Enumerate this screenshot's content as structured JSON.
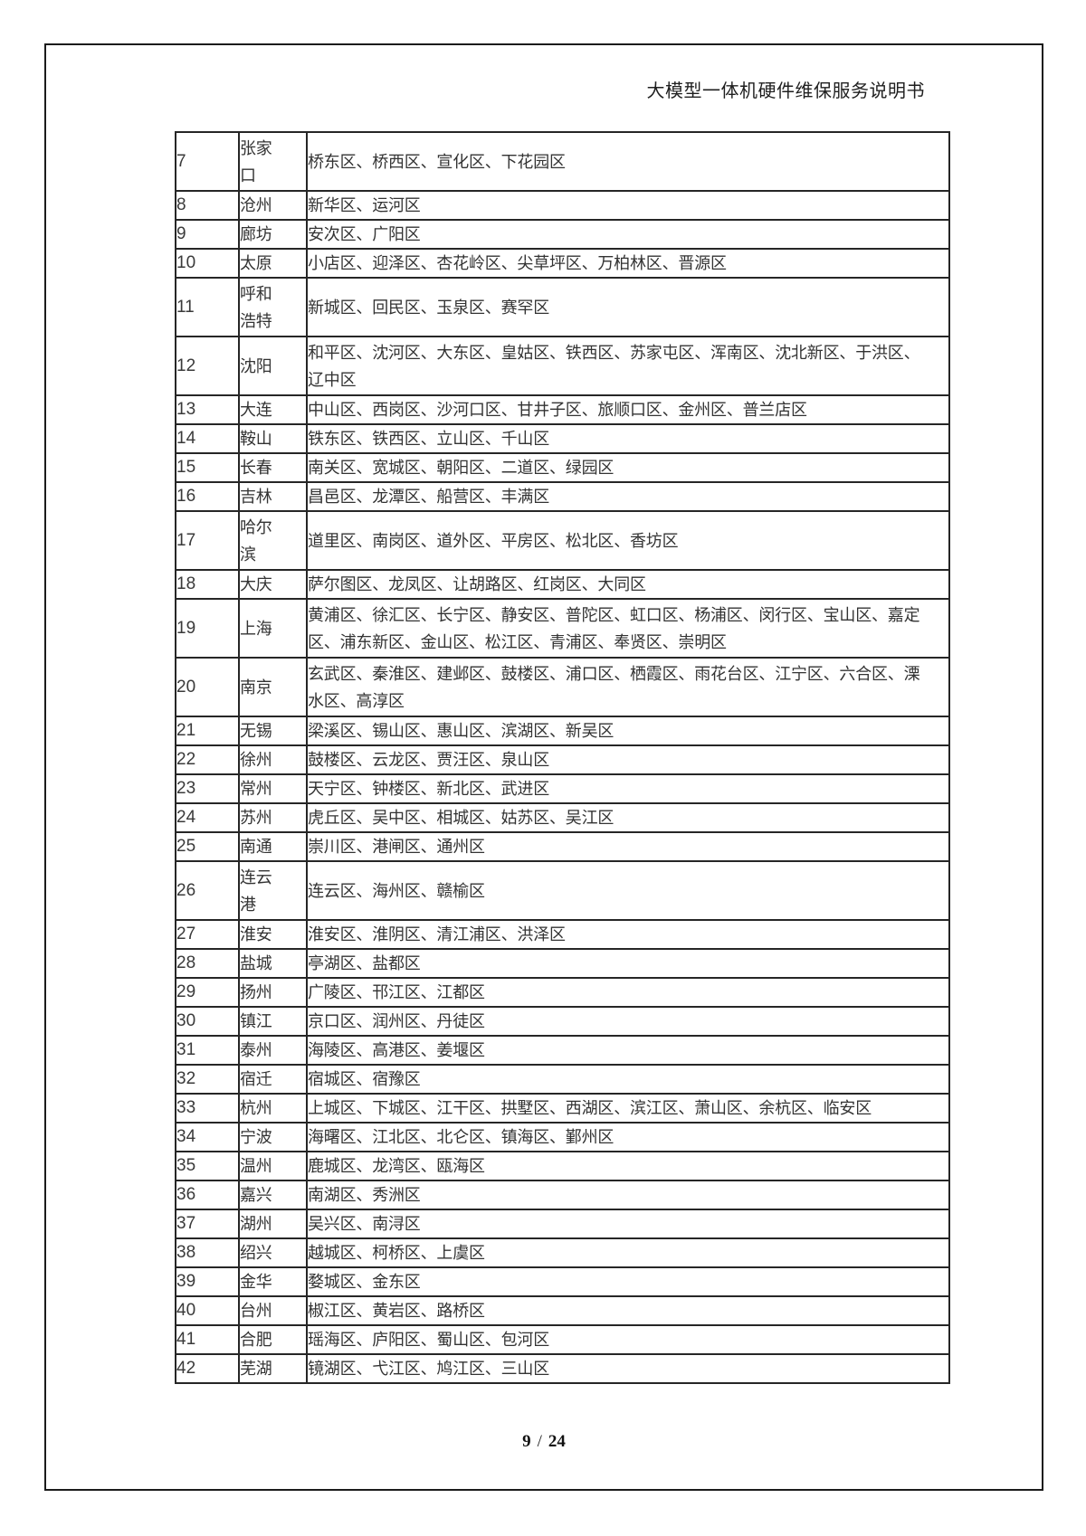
{
  "header": {
    "title": "大模型一体机硬件维保服务说明书"
  },
  "footer": {
    "current_page": "9",
    "separator": "/",
    "total_pages": "24"
  },
  "table": {
    "rows": [
      {
        "no": "7",
        "city_lines": [
          "张家",
          "口"
        ],
        "district_lines": [
          "桥东区、桥西区、宣化区、下花园区"
        ]
      },
      {
        "no": "8",
        "city_lines": [
          "沧州"
        ],
        "district_lines": [
          "新华区、运河区"
        ]
      },
      {
        "no": "9",
        "city_lines": [
          "廊坊"
        ],
        "district_lines": [
          "安次区、广阳区"
        ]
      },
      {
        "no": "10",
        "city_lines": [
          "太原"
        ],
        "district_lines": [
          "小店区、迎泽区、杏花岭区、尖草坪区、万柏林区、晋源区"
        ]
      },
      {
        "no": "11",
        "city_lines": [
          "呼和",
          "浩特"
        ],
        "district_lines": [
          "新城区、回民区、玉泉区、赛罕区"
        ]
      },
      {
        "no": "12",
        "city_lines": [
          "沈阳"
        ],
        "district_lines": [
          "和平区、沈河区、大东区、皇姑区、铁西区、苏家屯区、浑南区、沈北新区、于洪区、",
          "辽中区"
        ]
      },
      {
        "no": "13",
        "city_lines": [
          "大连"
        ],
        "district_lines": [
          "中山区、西岗区、沙河口区、甘井子区、旅顺口区、金州区、普兰店区"
        ]
      },
      {
        "no": "14",
        "city_lines": [
          "鞍山"
        ],
        "district_lines": [
          "铁东区、铁西区、立山区、千山区"
        ]
      },
      {
        "no": "15",
        "city_lines": [
          "长春"
        ],
        "district_lines": [
          "南关区、宽城区、朝阳区、二道区、绿园区"
        ]
      },
      {
        "no": "16",
        "city_lines": [
          "吉林"
        ],
        "district_lines": [
          "昌邑区、龙潭区、船营区、丰满区"
        ]
      },
      {
        "no": "17",
        "city_lines": [
          "哈尔",
          "滨"
        ],
        "district_lines": [
          "道里区、南岗区、道外区、平房区、松北区、香坊区"
        ]
      },
      {
        "no": "18",
        "city_lines": [
          "大庆"
        ],
        "district_lines": [
          "萨尔图区、龙凤区、让胡路区、红岗区、大同区"
        ]
      },
      {
        "no": "19",
        "city_lines": [
          "上海"
        ],
        "district_lines": [
          "黄浦区、徐汇区、长宁区、静安区、普陀区、虹口区、杨浦区、闵行区、宝山区、嘉定",
          "区、浦东新区、金山区、松江区、青浦区、奉贤区、崇明区"
        ]
      },
      {
        "no": "20",
        "city_lines": [
          "南京"
        ],
        "district_lines": [
          "玄武区、秦淮区、建邺区、鼓楼区、浦口区、栖霞区、雨花台区、江宁区、六合区、溧",
          "水区、高淳区"
        ]
      },
      {
        "no": "21",
        "city_lines": [
          "无锡"
        ],
        "district_lines": [
          "梁溪区、锡山区、惠山区、滨湖区、新吴区"
        ]
      },
      {
        "no": "22",
        "city_lines": [
          "徐州"
        ],
        "district_lines": [
          "鼓楼区、云龙区、贾汪区、泉山区"
        ]
      },
      {
        "no": "23",
        "city_lines": [
          "常州"
        ],
        "district_lines": [
          "天宁区、钟楼区、新北区、武进区"
        ]
      },
      {
        "no": "24",
        "city_lines": [
          "苏州"
        ],
        "district_lines": [
          "虎丘区、吴中区、相城区、姑苏区、吴江区"
        ]
      },
      {
        "no": "25",
        "city_lines": [
          "南通"
        ],
        "district_lines": [
          "崇川区、港闸区、通州区"
        ]
      },
      {
        "no": "26",
        "city_lines": [
          "连云",
          "港"
        ],
        "district_lines": [
          "连云区、海州区、赣榆区"
        ]
      },
      {
        "no": "27",
        "city_lines": [
          "淮安"
        ],
        "district_lines": [
          "淮安区、淮阴区、清江浦区、洪泽区"
        ]
      },
      {
        "no": "28",
        "city_lines": [
          "盐城"
        ],
        "district_lines": [
          "亭湖区、盐都区"
        ]
      },
      {
        "no": "29",
        "city_lines": [
          "扬州"
        ],
        "district_lines": [
          "广陵区、邗江区、江都区"
        ]
      },
      {
        "no": "30",
        "city_lines": [
          "镇江"
        ],
        "district_lines": [
          "京口区、润州区、丹徒区"
        ]
      },
      {
        "no": "31",
        "city_lines": [
          "泰州"
        ],
        "district_lines": [
          "海陵区、高港区、姜堰区"
        ]
      },
      {
        "no": "32",
        "city_lines": [
          "宿迁"
        ],
        "district_lines": [
          "宿城区、宿豫区"
        ]
      },
      {
        "no": "33",
        "city_lines": [
          "杭州"
        ],
        "district_lines": [
          "上城区、下城区、江干区、拱墅区、西湖区、滨江区、萧山区、余杭区、临安区"
        ]
      },
      {
        "no": "34",
        "city_lines": [
          "宁波"
        ],
        "district_lines": [
          "海曙区、江北区、北仑区、镇海区、鄞州区"
        ]
      },
      {
        "no": "35",
        "city_lines": [
          "温州"
        ],
        "district_lines": [
          "鹿城区、龙湾区、瓯海区"
        ]
      },
      {
        "no": "36",
        "city_lines": [
          "嘉兴"
        ],
        "district_lines": [
          "南湖区、秀洲区"
        ]
      },
      {
        "no": "37",
        "city_lines": [
          "湖州"
        ],
        "district_lines": [
          "吴兴区、南浔区"
        ]
      },
      {
        "no": "38",
        "city_lines": [
          "绍兴"
        ],
        "district_lines": [
          "越城区、柯桥区、上虞区"
        ]
      },
      {
        "no": "39",
        "city_lines": [
          "金华"
        ],
        "district_lines": [
          "婺城区、金东区"
        ]
      },
      {
        "no": "40",
        "city_lines": [
          "台州"
        ],
        "district_lines": [
          "椒江区、黄岩区、路桥区"
        ]
      },
      {
        "no": "41",
        "city_lines": [
          "合肥"
        ],
        "district_lines": [
          "瑶海区、庐阳区、蜀山区、包河区"
        ]
      },
      {
        "no": "42",
        "city_lines": [
          "芜湖"
        ],
        "district_lines": [
          "镜湖区、弋江区、鸠江区、三山区"
        ]
      }
    ]
  }
}
